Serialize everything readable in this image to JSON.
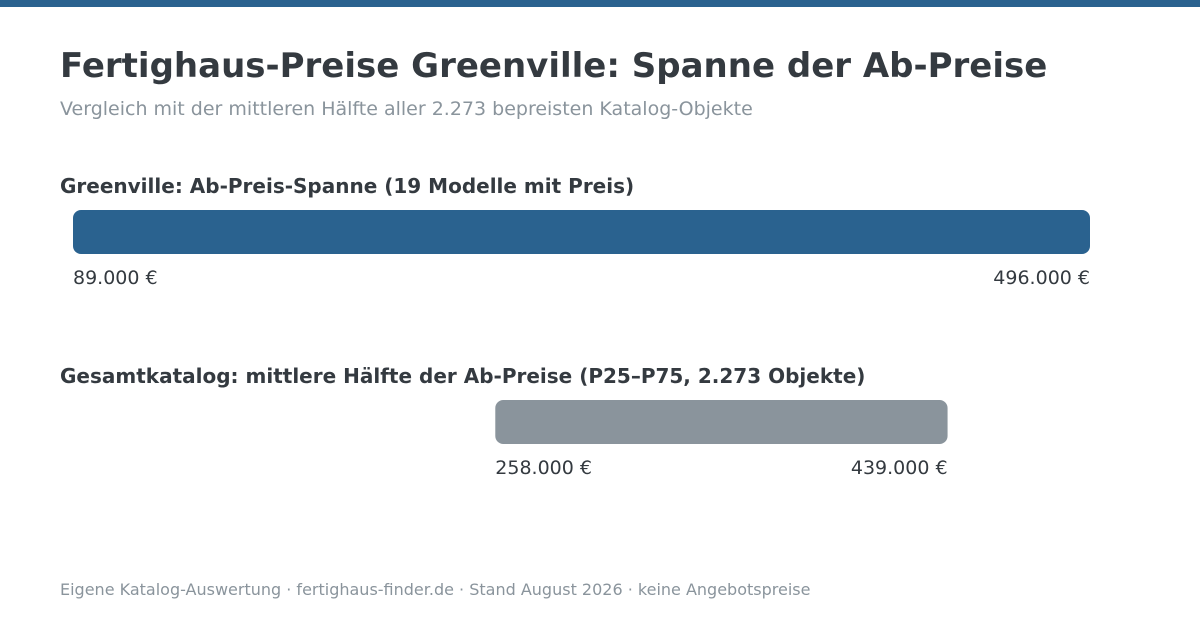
{
  "title": "Fertighaus-Preise Greenville: Spanne der Ab-Preise",
  "subtitle": "Vergleich mit der mittleren Hälfte aller 2.273 bepreisten Katalog-Objekte",
  "footer": "Eigene Katalog-Auswertung · fertighaus-finder.de · Stand August 2026 · keine Angebotspreise",
  "colors": {
    "accent": "#2a628f",
    "catalog_bar": "#8a949c",
    "text": "#343a40",
    "muted": "#8a949c"
  },
  "chart_data": {
    "type": "bar",
    "orientation": "horizontal",
    "unit": "€",
    "ranges": [
      {
        "label": "Greenville: Ab-Preis-Spanne (19 Modelle mit Preis)",
        "min": 89000,
        "max": 496000,
        "min_label": "89.000 €",
        "max_label": "496.000 €",
        "color": "#2a628f"
      },
      {
        "label": "Gesamtkatalog: mittlere Hälfte der Ab-Preise (P25–P75, 2.273 Objekte)",
        "min": 258000,
        "max": 439000,
        "min_label": "258.000 €",
        "max_label": "439.000 €",
        "color": "#8a949c"
      }
    ]
  }
}
